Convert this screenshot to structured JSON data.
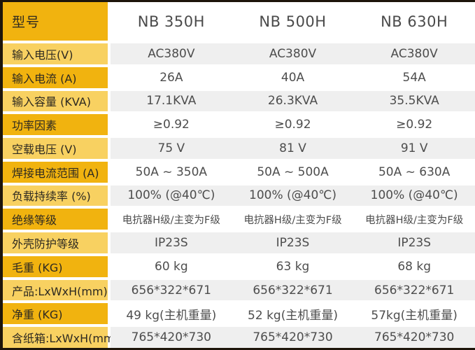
{
  "table": {
    "header": {
      "label": "型号",
      "models": [
        "NB 350H",
        "NB 500H",
        "NB 630H"
      ]
    },
    "rows": [
      {
        "label": "输入电压(V)",
        "values": [
          "AC380V",
          "AC380V",
          "AC380V"
        ]
      },
      {
        "label": "输入电流 (A)",
        "values": [
          "26A",
          "40A",
          "54A"
        ]
      },
      {
        "label": "输入容量 (KVA)",
        "values": [
          "17.1KVA",
          "26.3KVA",
          "35.5KVA"
        ]
      },
      {
        "label": "功率因素",
        "values": [
          "≥0.92",
          "≥0.92",
          "≥0.92"
        ]
      },
      {
        "label": "空载电压 (V)",
        "values": [
          "75 V",
          "81 V",
          "91 V"
        ]
      },
      {
        "label": "焊接电流范围 (A)",
        "values": [
          "50A ~ 350A",
          "50A ~ 500A",
          "50A ~ 630A"
        ]
      },
      {
        "label": "负载持续率 (%)",
        "values": [
          "100% (@40℃)",
          "100% (@40℃)",
          "100% (@40℃)"
        ]
      },
      {
        "label": "绝缘等级",
        "values": [
          "电抗器H级/主变为F级",
          "电抗器H级/主变为F级",
          "电抗器H级/主变为F级"
        ]
      },
      {
        "label": "外壳防护等级",
        "values": [
          "IP23S",
          "IP23S",
          "IP23S"
        ]
      },
      {
        "label": "毛重 (KG)",
        "values": [
          "60 kg",
          "63 kg",
          "68 kg"
        ]
      },
      {
        "label": "产品:LxWxH(mm)",
        "values": [
          "656*322*671",
          "656*322*671",
          "656*322*671"
        ]
      },
      {
        "label": "净重 (KG)",
        "values": [
          "49 kg(主机重量)",
          "52 kg(主机重量)",
          "57kg(主机重量)"
        ]
      },
      {
        "label": "含纸箱:LxWxH(mm)",
        "values": [
          "765*420*730",
          "765*420*730",
          "765*420*730"
        ]
      }
    ]
  },
  "colors": {
    "gold_dark": "#f1b30f",
    "gold_light": "#f8d161",
    "band_gray": "#efefef",
    "band_white": "#ffffff",
    "border_dark": "#1d150a",
    "label_text": "#2e2a21",
    "value_text": "#4d4d4d"
  }
}
